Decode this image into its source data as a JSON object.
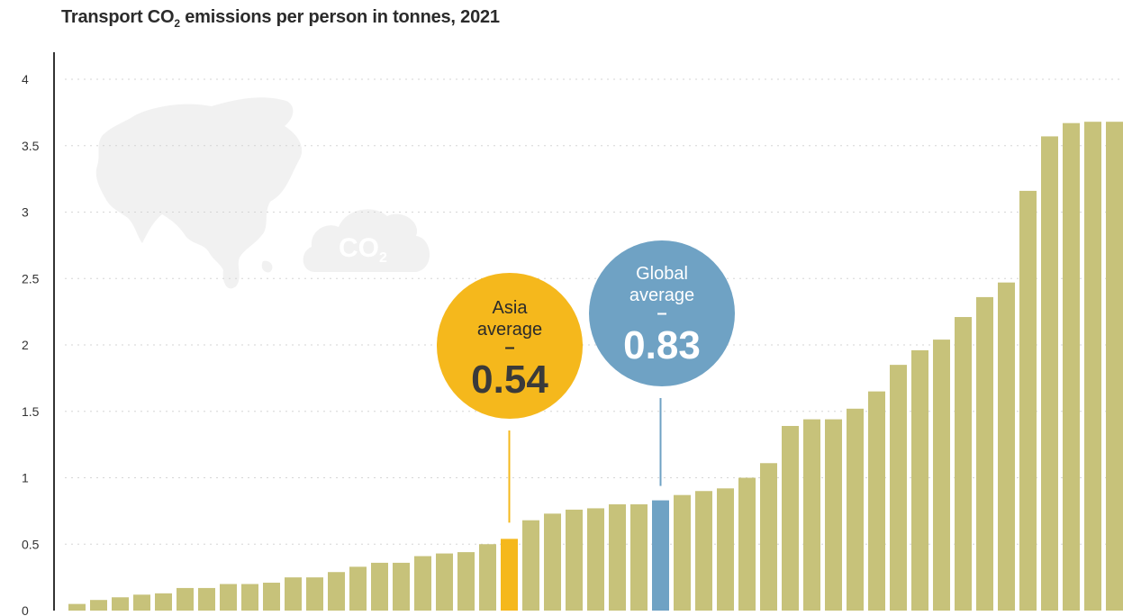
{
  "chart_data": {
    "type": "bar",
    "title": "Transport CO",
    "title_sub": "2",
    "title_suffix": " emissions per person in tonnes, 2021",
    "xlabel": "",
    "ylabel": "",
    "ylim": [
      0,
      4
    ],
    "yticks": [
      "0",
      "0.5",
      "1",
      "1.5",
      "2",
      "2.5",
      "3",
      "3.5",
      "4"
    ],
    "grid": true,
    "values": [
      0.05,
      0.08,
      0.1,
      0.12,
      0.13,
      0.17,
      0.17,
      0.2,
      0.2,
      0.21,
      0.25,
      0.25,
      0.29,
      0.33,
      0.36,
      0.36,
      0.41,
      0.43,
      0.44,
      0.5,
      0.54,
      0.68,
      0.73,
      0.76,
      0.77,
      0.8,
      0.8,
      0.83,
      0.87,
      0.9,
      0.92,
      1.0,
      1.11,
      1.39,
      1.44,
      1.44,
      1.52,
      1.65,
      1.85,
      1.96,
      2.04,
      2.21,
      2.36,
      2.47,
      3.16,
      3.57,
      3.67,
      3.68,
      3.68
    ],
    "highlights": {
      "asia_index": 20,
      "global_index": 27
    },
    "colors": {
      "bar": "#c7c27a",
      "asia": "#f5b81c",
      "global": "#6fa2c4"
    }
  },
  "annotations": {
    "asia": {
      "line1": "Asia",
      "line2": "average",
      "dash": "–",
      "value": "0.54"
    },
    "global": {
      "line1": "Global",
      "line2": "average",
      "dash": "–",
      "value": "0.83"
    }
  },
  "decoration": {
    "cloud_text": "CO",
    "cloud_sub": "2"
  }
}
